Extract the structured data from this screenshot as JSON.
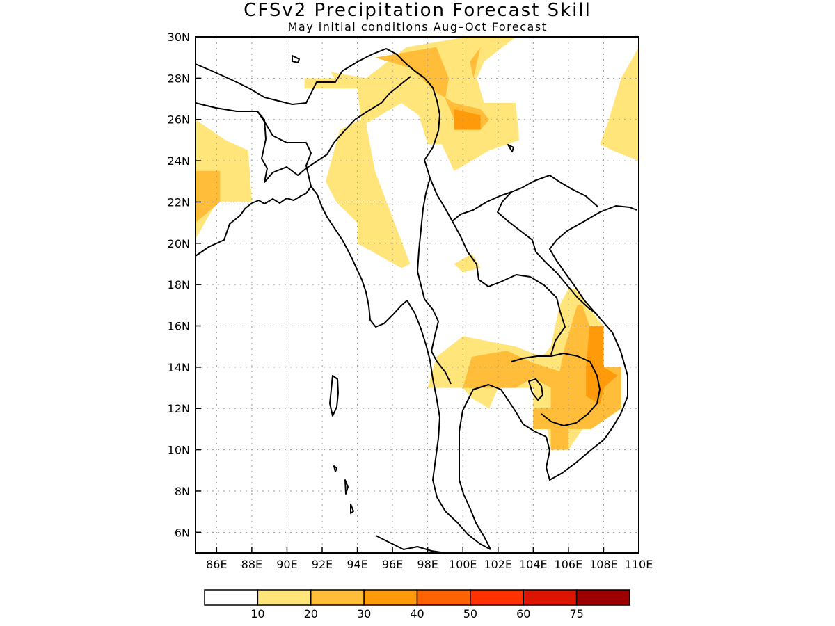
{
  "title": "CFSv2 Precipitation Forecast Skill",
  "subtitle": "May initial conditions  Aug–Oct Forecast",
  "chart_data": {
    "type": "heatmap",
    "x_ticks": [
      "86E",
      "88E",
      "90E",
      "92E",
      "94E",
      "96E",
      "98E",
      "100E",
      "102E",
      "104E",
      "106E",
      "108E",
      "110E"
    ],
    "y_ticks": [
      "30N",
      "28N",
      "26N",
      "24N",
      "22N",
      "20N",
      "18N",
      "16N",
      "14N",
      "12N",
      "10N",
      "8N",
      "6N"
    ],
    "xlim": [
      84.8,
      110
    ],
    "ylim": [
      5,
      30
    ],
    "grid": true,
    "colorbar": {
      "colors": [
        "#ffffff",
        "#ffe57a",
        "#ffbd3a",
        "#ff9a0a",
        "#ff6200",
        "#ff3200",
        "#db1500",
        "#9c0000"
      ],
      "labels": [
        "10",
        "20",
        "30",
        "40",
        "50",
        "60",
        "75"
      ]
    },
    "regions": [
      {
        "level": 1,
        "points": [
          [
            84.8,
            26.0
          ],
          [
            86.5,
            25.0
          ],
          [
            87.8,
            24.5
          ],
          [
            88.0,
            22.0
          ],
          [
            86.0,
            22.0
          ],
          [
            84.8,
            20.2
          ]
        ]
      },
      {
        "level": 2,
        "points": [
          [
            84.8,
            23.5
          ],
          [
            86.2,
            23.5
          ],
          [
            86.2,
            22.0
          ],
          [
            84.8,
            21.0
          ]
        ]
      },
      {
        "level": 1,
        "points": [
          [
            91.0,
            28.0
          ],
          [
            93.5,
            28.0
          ],
          [
            93.0,
            27.5
          ],
          [
            91.0,
            27.5
          ]
        ]
      },
      {
        "level": 1,
        "points": [
          [
            92.5,
            28.3
          ],
          [
            94.5,
            28.0
          ],
          [
            96.8,
            29.5
          ],
          [
            100.2,
            30.0
          ],
          [
            103.0,
            30.0
          ],
          [
            101.2,
            28.8
          ],
          [
            100.8,
            28.0
          ],
          [
            101.2,
            26.8
          ],
          [
            103.0,
            26.8
          ],
          [
            103.2,
            25.0
          ],
          [
            101.5,
            24.5
          ],
          [
            99.5,
            23.5
          ],
          [
            98.8,
            24.8
          ],
          [
            98.0,
            24.8
          ],
          [
            97.5,
            26.2
          ],
          [
            96.5,
            26.8
          ],
          [
            94.5,
            25.8
          ],
          [
            95.0,
            23.5
          ],
          [
            97.0,
            19.0
          ],
          [
            96.5,
            18.8
          ],
          [
            94.0,
            20.0
          ],
          [
            94.0,
            21.0
          ],
          [
            92.8,
            22.0
          ],
          [
            92.2,
            23.0
          ],
          [
            93.0,
            25.5
          ],
          [
            94.2,
            26.0
          ],
          [
            94.0,
            27.5
          ],
          [
            93.0,
            27.5
          ]
        ]
      },
      {
        "level": 2,
        "points": [
          [
            95.0,
            29.0
          ],
          [
            98.5,
            29.5
          ],
          [
            99.2,
            28.0
          ],
          [
            99.0,
            27.0
          ],
          [
            99.5,
            26.0
          ],
          [
            101.0,
            25.5
          ],
          [
            101.5,
            26.0
          ],
          [
            101.0,
            26.5
          ],
          [
            99.5,
            26.8
          ],
          [
            98.5,
            27.3
          ],
          [
            97.0,
            28.5
          ]
        ]
      },
      {
        "level": 2,
        "points": [
          [
            100.4,
            28.8
          ],
          [
            101.0,
            29.5
          ],
          [
            100.6,
            28.0
          ]
        ]
      },
      {
        "level": 3,
        "points": [
          [
            99.5,
            26.5
          ],
          [
            101.0,
            26.2
          ],
          [
            101.0,
            25.5
          ],
          [
            99.5,
            25.5
          ]
        ]
      },
      {
        "level": 1,
        "points": [
          [
            110,
            29.5
          ],
          [
            109.0,
            28.0
          ],
          [
            108.3,
            26.0
          ],
          [
            107.8,
            24.8
          ],
          [
            108.5,
            24.5
          ],
          [
            110,
            24.0
          ]
        ]
      },
      {
        "level": 1,
        "points": [
          [
            99.5,
            19.0
          ],
          [
            100.5,
            19.5
          ],
          [
            101.0,
            18.8
          ],
          [
            100.0,
            18.6
          ]
        ]
      },
      {
        "level": 1,
        "points": [
          [
            98.0,
            13.0
          ],
          [
            98.5,
            14.5
          ],
          [
            100.0,
            15.5
          ],
          [
            103.0,
            15.0
          ],
          [
            104.5,
            14.5
          ],
          [
            105.0,
            15.0
          ],
          [
            105.5,
            17.0
          ],
          [
            106.0,
            17.8
          ],
          [
            106.5,
            17.8
          ],
          [
            107.5,
            16.5
          ],
          [
            108.0,
            16.0
          ],
          [
            108.0,
            14.0
          ],
          [
            109.0,
            14.0
          ],
          [
            109.0,
            12.0
          ],
          [
            108.0,
            11.5
          ],
          [
            106.8,
            11.0
          ],
          [
            106.0,
            10.0
          ],
          [
            105.0,
            10.0
          ],
          [
            104.8,
            11.0
          ],
          [
            104.0,
            11.0
          ],
          [
            104.0,
            13.0
          ],
          [
            102.0,
            13.0
          ],
          [
            101.5,
            12.0
          ],
          [
            100.5,
            12.5
          ],
          [
            100.0,
            13.0
          ]
        ]
      },
      {
        "level": 2,
        "points": [
          [
            100.0,
            13.0
          ],
          [
            100.5,
            14.5
          ],
          [
            102.5,
            14.8
          ],
          [
            104.0,
            14.2
          ],
          [
            105.5,
            13.8
          ],
          [
            105.8,
            15.0
          ],
          [
            106.5,
            17.0
          ],
          [
            106.8,
            17.0
          ],
          [
            107.2,
            16.0
          ],
          [
            108.0,
            16.0
          ],
          [
            108.0,
            14.0
          ],
          [
            109.0,
            14.0
          ],
          [
            109.0,
            12.0
          ],
          [
            107.3,
            11.0
          ],
          [
            106.0,
            11.0
          ],
          [
            106.0,
            10.0
          ],
          [
            105.0,
            10.0
          ],
          [
            105.0,
            11.0
          ],
          [
            104.0,
            11.0
          ],
          [
            104.0,
            12.0
          ],
          [
            105.0,
            12.0
          ],
          [
            105.0,
            13.0
          ],
          [
            104.0,
            13.5
          ],
          [
            103.0,
            13.0
          ]
        ]
      },
      {
        "level": 3,
        "points": [
          [
            107.2,
            16.0
          ],
          [
            108.0,
            16.0
          ],
          [
            108.0,
            14.0
          ],
          [
            108.8,
            13.6
          ],
          [
            108.0,
            13.0
          ],
          [
            107.8,
            12.2
          ],
          [
            107.0,
            12.6
          ],
          [
            107.0,
            14.0
          ]
        ]
      }
    ]
  }
}
